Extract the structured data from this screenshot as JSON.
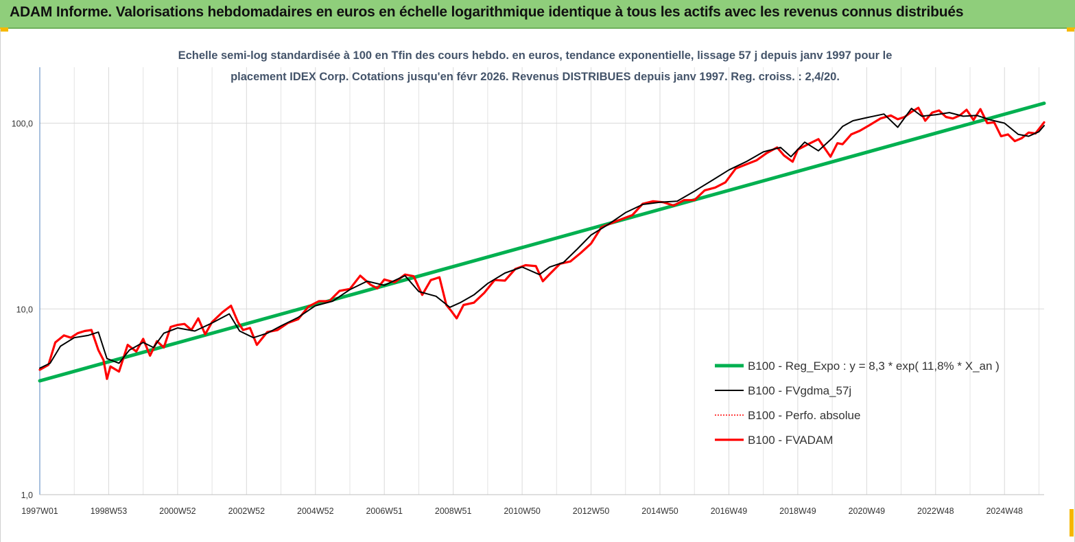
{
  "header": {
    "title": "ADAM Informe. Valorisations hebdomadaires en euros en échelle logarithmique identique à tous les actifs avec les revenus connus distribués"
  },
  "chart_data": {
    "type": "line",
    "title_line1": "Echelle semi-log standardisée à 100 en Tfin des cours hebdo. en euros, tendance exponentielle, lissage 57 j depuis janv 1997 pour le",
    "title_line2": "placement IDEX Corp. Cotations jusqu'en févr 2026. Revenus DISTRIBUES depuis janv 1997. Reg. croiss. : 2,4/20.",
    "y_scale": "log",
    "ylim": [
      1,
      200
    ],
    "y_ticks": [
      "100,0",
      "10,0",
      "1,0"
    ],
    "y_tick_values": [
      100,
      10,
      1
    ],
    "xlim": [
      1997.0,
      2026.15
    ],
    "x_ticks": [
      "1997W01",
      "1998W53",
      "2000W52",
      "2002W52",
      "2004W52",
      "2006W51",
      "2008W51",
      "2010W50",
      "2012W50",
      "2014W50",
      "2016W49",
      "2018W49",
      "2020W49",
      "2022W48",
      "2024W48"
    ],
    "x_tick_values": [
      1997.0,
      1999.0,
      2001.0,
      2003.0,
      2005.0,
      2007.0,
      2009.0,
      2011.0,
      2013.0,
      2015.0,
      2017.0,
      2019.0,
      2021.0,
      2023.0,
      2025.0
    ],
    "grid": "vertical",
    "legend_position": "lower-right",
    "colors": {
      "reg": "#00b050",
      "fvgdma": "#000000",
      "perfo": "#ff0000",
      "fvadam": "#ff0000"
    },
    "series": [
      {
        "name": "B100 - Reg_Expo : y = 8,3 * exp( 11,8% *  X_an )",
        "style": "thick-green",
        "x": [
          1997.0,
          2026.15
        ],
        "values": [
          4.1,
          128
        ]
      },
      {
        "name": "B100 - FVgdma_57j",
        "style": "thin-black",
        "x": [
          1997.0,
          1997.3,
          1997.6,
          1998.0,
          1998.4,
          1998.7,
          1998.95,
          1999.3,
          1999.6,
          2000.0,
          2000.3,
          2000.6,
          2001.0,
          2001.5,
          2002.0,
          2002.5,
          2002.8,
          2003.2,
          2003.6,
          2004.0,
          2004.5,
          2005.0,
          2005.5,
          2006.0,
          2006.5,
          2007.0,
          2007.6,
          2008.0,
          2008.5,
          2008.9,
          2009.2,
          2009.6,
          2010.0,
          2010.5,
          2011.0,
          2011.5,
          2011.8,
          2012.2,
          2012.6,
          2013.0,
          2013.5,
          2014.0,
          2014.5,
          2015.0,
          2015.5,
          2016.0,
          2016.5,
          2017.0,
          2017.5,
          2018.0,
          2018.5,
          2018.8,
          2019.2,
          2019.6,
          2020.0,
          2020.3,
          2020.6,
          2021.0,
          2021.5,
          2021.9,
          2022.3,
          2022.6,
          2023.0,
          2023.4,
          2023.8,
          2024.2,
          2024.6,
          2025.0,
          2025.4,
          2025.7,
          2026.0,
          2026.15
        ],
        "values": [
          4.8,
          5.1,
          6.3,
          7.0,
          7.2,
          7.5,
          5.4,
          5.1,
          6.0,
          6.6,
          6.2,
          7.4,
          7.9,
          7.6,
          8.4,
          9.4,
          7.6,
          7.0,
          7.4,
          8.1,
          9.0,
          10.4,
          11.0,
          12.7,
          14.1,
          13.4,
          15.1,
          12.4,
          11.7,
          10.2,
          10.8,
          11.9,
          13.7,
          15.6,
          16.8,
          15.3,
          16.8,
          17.8,
          21.0,
          25.0,
          28.5,
          33.0,
          36.5,
          37.5,
          38.0,
          43.0,
          49.0,
          56.0,
          62.0,
          70.0,
          74.0,
          66.0,
          79.0,
          71.0,
          83.0,
          96.0,
          103.0,
          107.0,
          112.0,
          95.0,
          120.0,
          109.0,
          111.0,
          114.0,
          109.0,
          110.0,
          104.0,
          100.0,
          87.0,
          85.0,
          90.0,
          97.0
        ]
      },
      {
        "name": "B100 - Perfo. absolue",
        "style": "dotted-red",
        "x": [],
        "values": []
      },
      {
        "name": "B100 - FVADAM",
        "style": "thick-red",
        "x": [
          1997.0,
          1997.25,
          1997.45,
          1997.7,
          1997.9,
          1998.1,
          1998.3,
          1998.5,
          1998.7,
          1998.85,
          1998.95,
          1999.05,
          1999.3,
          1999.55,
          1999.8,
          2000.0,
          2000.2,
          2000.4,
          2000.6,
          2000.8,
          2001.0,
          2001.2,
          2001.4,
          2001.6,
          2001.8,
          2002.0,
          2002.3,
          2002.55,
          2002.75,
          2002.9,
          2003.1,
          2003.3,
          2003.6,
          2003.9,
          2004.2,
          2004.5,
          2004.8,
          2005.1,
          2005.4,
          2005.7,
          2006.0,
          2006.3,
          2006.6,
          2006.8,
          2007.0,
          2007.3,
          2007.6,
          2007.85,
          2008.1,
          2008.35,
          2008.6,
          2008.8,
          2008.95,
          2009.1,
          2009.3,
          2009.6,
          2009.9,
          2010.2,
          2010.5,
          2010.8,
          2011.1,
          2011.4,
          2011.6,
          2011.8,
          2012.1,
          2012.4,
          2012.7,
          2013.0,
          2013.3,
          2013.6,
          2013.9,
          2014.2,
          2014.5,
          2014.8,
          2015.1,
          2015.4,
          2015.7,
          2016.0,
          2016.3,
          2016.6,
          2016.9,
          2017.2,
          2017.5,
          2017.8,
          2018.1,
          2018.4,
          2018.6,
          2018.85,
          2019.0,
          2019.3,
          2019.6,
          2019.95,
          2020.15,
          2020.3,
          2020.55,
          2020.8,
          2021.1,
          2021.4,
          2021.7,
          2021.9,
          2022.1,
          2022.3,
          2022.5,
          2022.7,
          2022.9,
          2023.1,
          2023.3,
          2023.5,
          2023.7,
          2023.9,
          2024.1,
          2024.3,
          2024.5,
          2024.7,
          2024.9,
          2025.1,
          2025.3,
          2025.5,
          2025.7,
          2025.9,
          2026.15
        ],
        "values": [
          4.7,
          5.0,
          6.6,
          7.2,
          7.0,
          7.4,
          7.6,
          7.7,
          6.0,
          5.3,
          4.2,
          4.9,
          4.6,
          6.4,
          5.9,
          6.9,
          5.6,
          6.7,
          6.2,
          8.0,
          8.2,
          8.3,
          7.7,
          8.9,
          7.3,
          8.5,
          9.6,
          10.4,
          8.5,
          7.7,
          7.9,
          6.4,
          7.5,
          7.7,
          8.4,
          8.8,
          10.3,
          11.0,
          11.0,
          12.5,
          12.8,
          15.1,
          13.5,
          12.9,
          14.4,
          13.9,
          15.3,
          15.0,
          11.9,
          14.3,
          14.8,
          10.5,
          9.7,
          8.9,
          10.5,
          10.8,
          12.2,
          14.3,
          14.2,
          16.4,
          17.2,
          17.0,
          14.1,
          15.4,
          17.5,
          18.0,
          20.0,
          22.5,
          27.5,
          29.0,
          30.5,
          32.0,
          36.8,
          38.0,
          37.5,
          36.0,
          38.5,
          38.5,
          43.5,
          45.0,
          48.0,
          57.0,
          60.0,
          63.0,
          69.0,
          74.0,
          67.0,
          62.0,
          72.0,
          77.0,
          82.0,
          66.0,
          78.0,
          77.0,
          87.0,
          91.0,
          98.0,
          106.0,
          110.0,
          105.0,
          108.0,
          115.0,
          121.0,
          103.0,
          114.0,
          117.0,
          108.0,
          106.0,
          110.0,
          118.0,
          104.0,
          119.0,
          100.0,
          101.0,
          85.0,
          87.0,
          80.0,
          83.0,
          89.0,
          88.0,
          101.0
        ]
      }
    ]
  }
}
